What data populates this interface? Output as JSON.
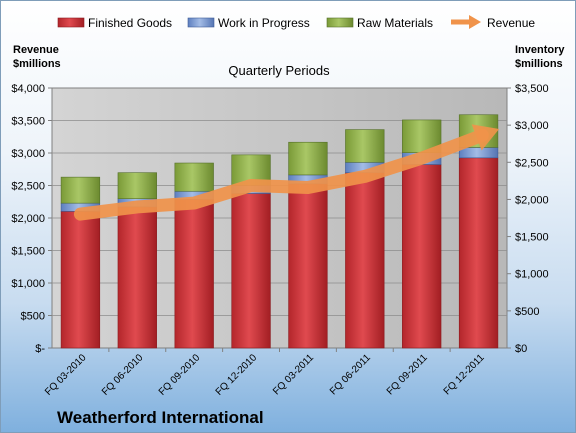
{
  "chart_data": {
    "type": "bar",
    "stacked": true,
    "title": "Quarterly Periods",
    "company": "Weatherford International",
    "categories": [
      "FQ 03-2010",
      "FQ 06-2010",
      "FQ 09-2010",
      "FQ 12-2010",
      "FQ 03-2011",
      "FQ 06-2011",
      "FQ 09-2011",
      "FQ 12-2011"
    ],
    "left_axis": {
      "label": "Revenue\n$millions",
      "ylim": [
        0,
        4000
      ],
      "ticks": [
        0,
        500,
        1000,
        1500,
        2000,
        2500,
        3000,
        3500,
        4000
      ],
      "tick_labels": [
        "$-",
        "$500",
        "$1,000",
        "$1,500",
        "$2,000",
        "$2,500",
        "$3,000",
        "$3,500",
        "$4,000"
      ]
    },
    "right_axis": {
      "label": "Inventory\n$millions",
      "ylim": [
        0,
        3500
      ],
      "ticks": [
        0,
        500,
        1000,
        1500,
        2000,
        2500,
        3000,
        3500
      ],
      "tick_labels": [
        "$0",
        "$500",
        "$1,000",
        "$1,500",
        "$2,000",
        "$2,500",
        "$3,000",
        "$3,500"
      ]
    },
    "series": [
      {
        "name": "Finished Goods",
        "axis": "right",
        "color": "#c0282d",
        "values": [
          1840,
          1900,
          2000,
          2080,
          2210,
          2360,
          2470,
          2560
        ]
      },
      {
        "name": "Work in Progress",
        "axis": "right",
        "color": "#7394cf",
        "values": [
          110,
          110,
          110,
          110,
          120,
          140,
          160,
          140
        ]
      },
      {
        "name": "Raw Materials",
        "axis": "right",
        "color": "#8fb04a",
        "values": [
          350,
          350,
          380,
          410,
          440,
          440,
          440,
          440
        ]
      },
      {
        "name": "Revenue",
        "axis": "left",
        "type": "line",
        "color": "#f0934a",
        "values": [
          2060,
          2170,
          2230,
          2500,
          2470,
          2640,
          2920,
          3250
        ]
      }
    ],
    "legend_position": "top",
    "grid": true
  }
}
